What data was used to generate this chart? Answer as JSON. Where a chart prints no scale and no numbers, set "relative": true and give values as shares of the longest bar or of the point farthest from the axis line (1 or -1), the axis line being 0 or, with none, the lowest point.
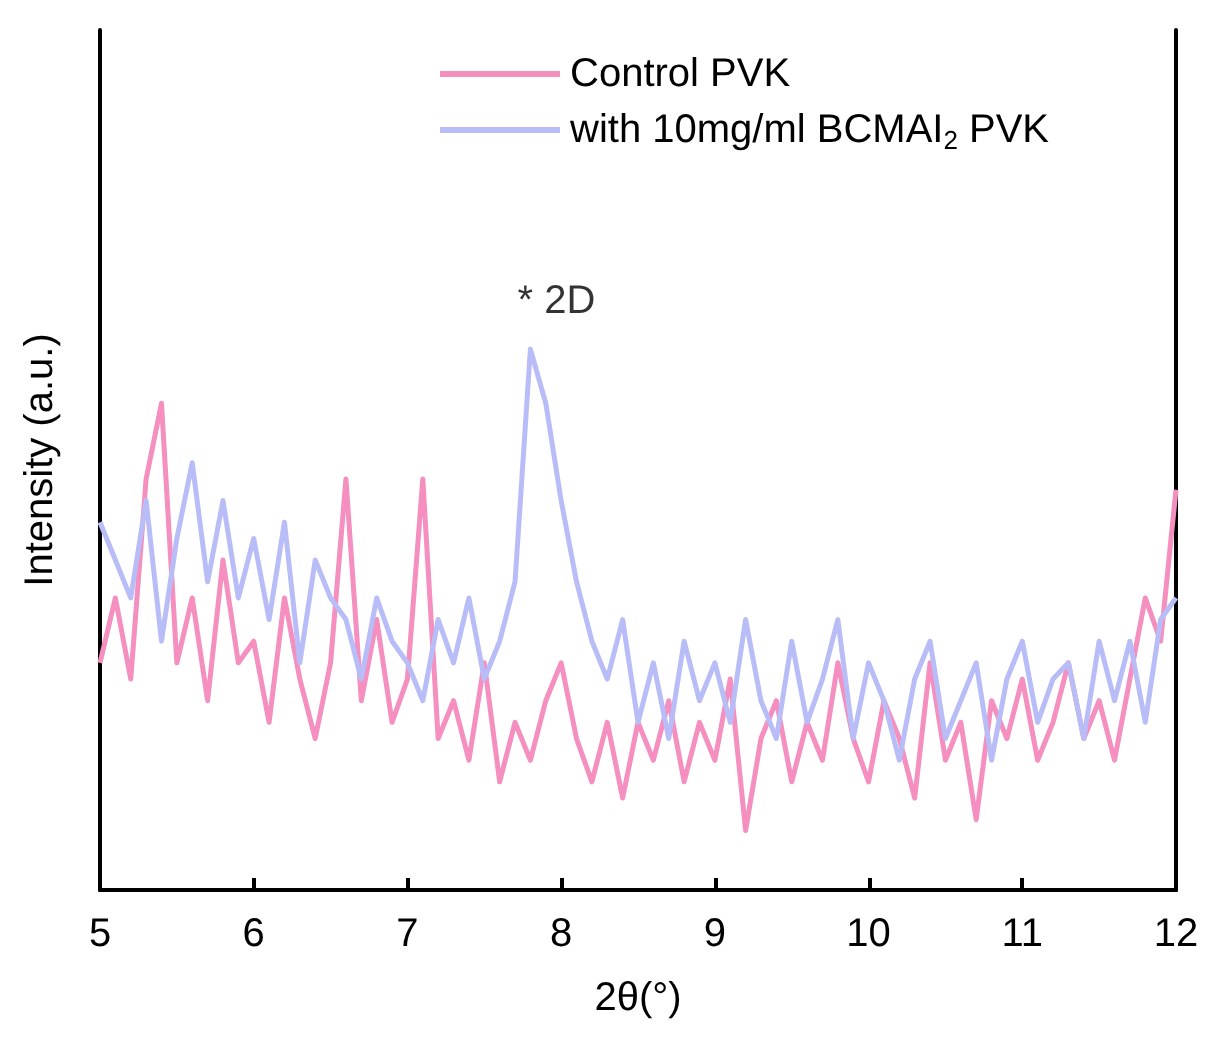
{
  "chart_data": {
    "type": "line",
    "relative": true,
    "xlabel": "2θ(°)",
    "ylabel": "Intensity (a.u.)",
    "xlim": [
      5,
      12
    ],
    "xticks": [
      5,
      6,
      7,
      8,
      9,
      10,
      11,
      12
    ],
    "legend": "top",
    "marker": "none",
    "line_style": "solid",
    "grid": false,
    "annotations": [
      {
        "text": "* 2D",
        "x": 7.82,
        "y": 1.0
      }
    ],
    "x": [
      5.0,
      5.1,
      5.2,
      5.3,
      5.4,
      5.5,
      5.6,
      5.7,
      5.8,
      5.9,
      6.0,
      6.1,
      6.2,
      6.3,
      6.4,
      6.5,
      6.6,
      6.7,
      6.8,
      6.9,
      7.0,
      7.1,
      7.2,
      7.3,
      7.4,
      7.5,
      7.6,
      7.7,
      7.8,
      7.9,
      8.0,
      8.1,
      8.2,
      8.3,
      8.4,
      8.5,
      8.6,
      8.7,
      8.8,
      8.9,
      9.0,
      9.1,
      9.2,
      9.3,
      9.4,
      9.5,
      9.6,
      9.7,
      9.8,
      9.9,
      10.0,
      10.1,
      10.2,
      10.3,
      10.4,
      10.5,
      10.6,
      10.7,
      10.8,
      10.9,
      11.0,
      11.1,
      11.2,
      11.3,
      11.4,
      11.5,
      11.6,
      11.7,
      11.8,
      11.9,
      12.0
    ],
    "series": [
      {
        "name": "Control PVK",
        "color": "#f48fbf",
        "values": [
          0.42,
          0.54,
          0.39,
          0.76,
          0.9,
          0.42,
          0.54,
          0.35,
          0.61,
          0.42,
          0.46,
          0.31,
          0.54,
          0.39,
          0.28,
          0.42,
          0.76,
          0.35,
          0.5,
          0.31,
          0.39,
          0.76,
          0.28,
          0.35,
          0.24,
          0.42,
          0.2,
          0.31,
          0.24,
          0.35,
          0.42,
          0.28,
          0.2,
          0.31,
          0.17,
          0.31,
          0.24,
          0.35,
          0.2,
          0.31,
          0.24,
          0.39,
          0.11,
          0.28,
          0.35,
          0.2,
          0.31,
          0.24,
          0.42,
          0.28,
          0.2,
          0.35,
          0.28,
          0.17,
          0.42,
          0.24,
          0.31,
          0.13,
          0.35,
          0.28,
          0.39,
          0.24,
          0.31,
          0.42,
          0.28,
          0.35,
          0.24,
          0.39,
          0.54,
          0.46,
          0.74
        ]
      },
      {
        "name": "with 10mg/ml BCMAI$_{2}$ PVK",
        "color": "#b8bdf8",
        "values": [
          0.68,
          0.61,
          0.54,
          0.72,
          0.46,
          0.65,
          0.79,
          0.57,
          0.72,
          0.54,
          0.65,
          0.5,
          0.68,
          0.42,
          0.61,
          0.54,
          0.5,
          0.39,
          0.54,
          0.46,
          0.42,
          0.35,
          0.5,
          0.42,
          0.54,
          0.39,
          0.46,
          0.57,
          1.0,
          0.9,
          0.72,
          0.57,
          0.46,
          0.39,
          0.5,
          0.31,
          0.42,
          0.28,
          0.46,
          0.35,
          0.42,
          0.31,
          0.5,
          0.35,
          0.28,
          0.46,
          0.31,
          0.39,
          0.5,
          0.28,
          0.42,
          0.35,
          0.24,
          0.39,
          0.46,
          0.28,
          0.35,
          0.42,
          0.24,
          0.39,
          0.46,
          0.31,
          0.39,
          0.42,
          0.28,
          0.46,
          0.35,
          0.46,
          0.31,
          0.5,
          0.54
        ]
      }
    ]
  }
}
